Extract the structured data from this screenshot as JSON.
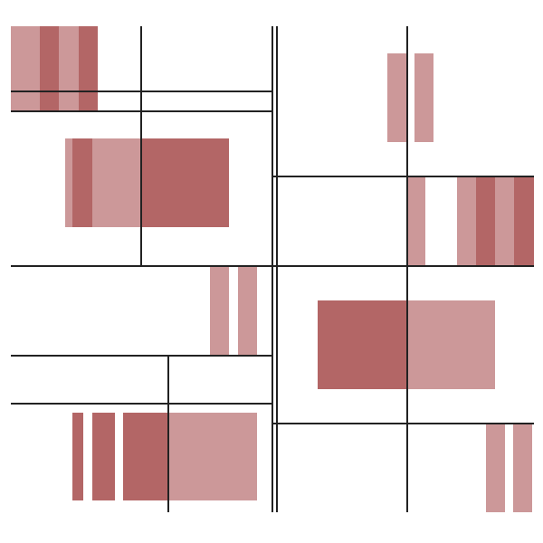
{
  "artwork": {
    "style": "geometric abstract composition",
    "colors": {
      "background": "#ffffff",
      "dark_block": "#b36666",
      "light_block": "#cc9899",
      "line": "#222222"
    }
  }
}
